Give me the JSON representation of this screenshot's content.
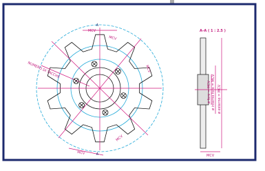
{
  "drawing": {
    "section_marks": [
      "A",
      "A"
    ],
    "section_title": "A–A  ( 1 : 2.5 )",
    "dimension_label": "MCV",
    "angle_label": "NUMERO DI TACCHE",
    "side_labels": [
      "ø foro = MCV",
      "ø interno foro = MCV",
      "ø esterno = MCV"
    ]
  }
}
